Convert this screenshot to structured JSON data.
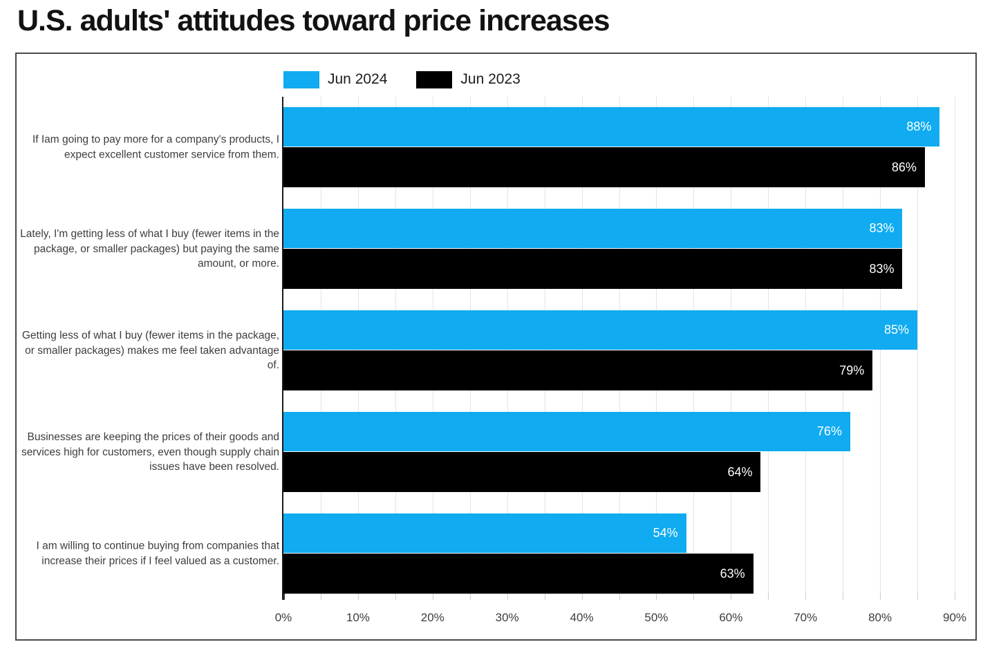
{
  "title": "U.S. adults' attitudes toward price increases",
  "chart_data": {
    "type": "bar",
    "orientation": "horizontal",
    "title": "U.S. adults' attitudes toward price increases",
    "categories": [
      "If Iam going to pay more for a company's products, I expect excellent customer service from them.",
      "Lately, I'm getting less of what I buy (fewer items in the package, or smaller packages) but paying the same amount, or more.",
      "Getting less of what I buy (fewer items in the package, or smaller packages) makes me feel taken advantage of.",
      "Businesses are keeping the prices of their goods and services high for customers, even though supply chain issues have been resolved.",
      "I am willing to continue buying from companies that increase their prices if I feel valued as a customer."
    ],
    "series": [
      {
        "name": "Jun 2024",
        "color": "#10ABF0",
        "values": [
          88,
          83,
          85,
          76,
          54
        ]
      },
      {
        "name": "Jun 2023",
        "color": "#000000",
        "values": [
          86,
          83,
          79,
          64,
          63
        ]
      }
    ],
    "value_suffix": "%",
    "xlabel": "",
    "ylabel": "",
    "xlim": [
      0,
      90
    ],
    "x_tick_step": 10,
    "grid_step": 5,
    "tick_labels": [
      "0%",
      "10%",
      "20%",
      "30%",
      "40%",
      "50%",
      "60%",
      "70%",
      "80%",
      "90%"
    ],
    "grid": true,
    "legend_position": "top",
    "colors": {
      "grid": "#e3e3e3",
      "axis": "#1a1a1a",
      "frame": "#4a4a4a",
      "value_text": "#ffffff",
      "label_text": "#3d3d3d"
    }
  }
}
